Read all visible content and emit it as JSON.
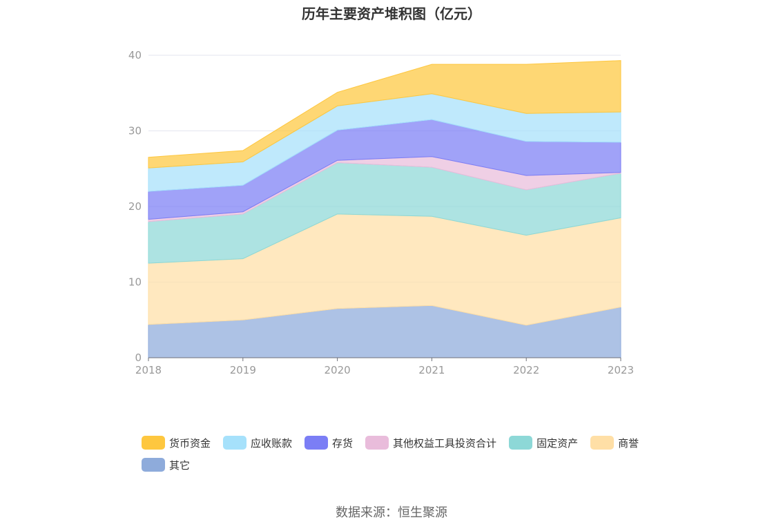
{
  "title": "历年主要资产堆积图（亿元）",
  "source": "数据来源：恒生聚源",
  "chart_data": {
    "type": "area",
    "stacked": true,
    "x": [
      "2018",
      "2019",
      "2020",
      "2021",
      "2022",
      "2023"
    ],
    "ylim": [
      0,
      40
    ],
    "yticks": [
      0,
      10,
      20,
      30,
      40
    ],
    "grid": true,
    "legend_position": "bottom",
    "series": [
      {
        "name": "其它",
        "color": "#8EABDB",
        "values": [
          4.4,
          5.0,
          6.5,
          6.9,
          4.3,
          6.7
        ]
      },
      {
        "name": "商誉",
        "color": "#FFDFA6",
        "values": [
          8.1,
          8.1,
          12.5,
          11.8,
          11.9,
          11.8
        ]
      },
      {
        "name": "固定资产",
        "color": "#8DD8D7",
        "values": [
          5.5,
          5.9,
          6.8,
          6.5,
          6.0,
          5.9
        ]
      },
      {
        "name": "其他权益工具投资合计",
        "color": "#E9BCDB",
        "values": [
          0.3,
          0.3,
          0.3,
          1.4,
          1.9,
          0.1
        ]
      },
      {
        "name": "存货",
        "color": "#7B7EF5",
        "values": [
          3.7,
          3.5,
          4.0,
          4.9,
          4.5,
          4.0
        ]
      },
      {
        "name": "应收账款",
        "color": "#A6E1FB",
        "values": [
          3.1,
          3.1,
          3.2,
          3.4,
          3.7,
          4.0
        ]
      },
      {
        "name": "货币资金",
        "color": "#FEC73F",
        "values": [
          1.4,
          1.5,
          1.8,
          3.9,
          6.5,
          6.8
        ]
      }
    ],
    "legend_order": [
      "货币资金",
      "应收账款",
      "存货",
      "其他权益工具投资合计",
      "固定资产",
      "商誉",
      "其它"
    ]
  }
}
